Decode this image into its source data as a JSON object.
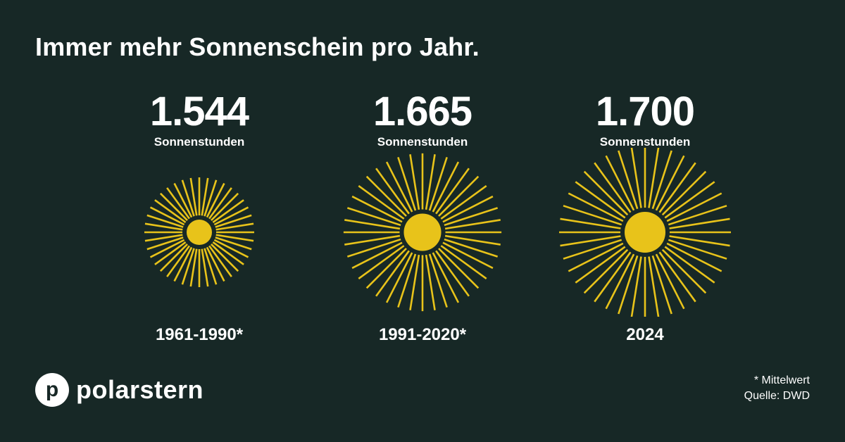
{
  "header": {
    "title": "Immer mehr Sonnenschein pro Jahr."
  },
  "chart_data": {
    "type": "pictogram",
    "unit": "Sonnenstunden",
    "categories": [
      "1961-1990*",
      "1991-2020*",
      "2024"
    ],
    "values": [
      1544,
      1665,
      1700
    ],
    "value_labels": [
      "1.544",
      "1.665",
      "1.700"
    ],
    "color": "#e8c31a"
  },
  "brand": {
    "logo_letter": "p",
    "name": "polarstern"
  },
  "footnote": {
    "line1": "* Mittelwert",
    "line2": "Quelle: DWD"
  }
}
